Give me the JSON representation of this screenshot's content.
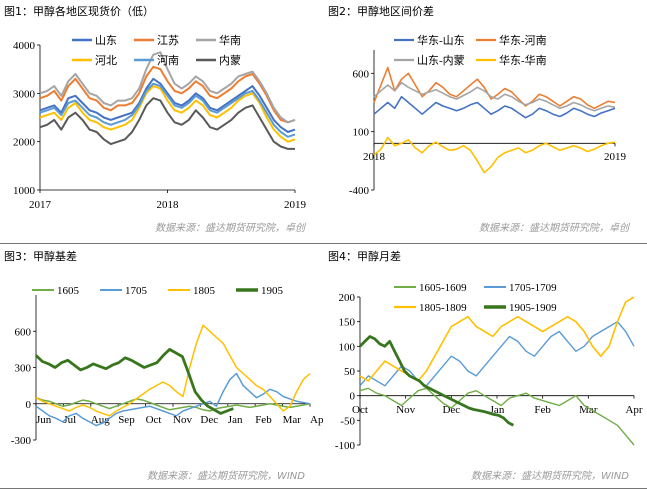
{
  "panels": [
    {
      "title": "图1：甲醇各地区现货价（低）",
      "source": "数据来源：盛达期货研究院，卓创"
    },
    {
      "title": "图2：甲醇地区间价差",
      "source": "数据来源：盛达期货研究院，卓创"
    },
    {
      "title": "图3：甲醇基差",
      "source": "数据来源：盛达期货研究院，WIND"
    },
    {
      "title": "图4：甲醇月差",
      "source": "数据来源：盛达期货研究院，WIND"
    }
  ],
  "chart_data": [
    {
      "type": "line",
      "x_ticks": [
        "2017",
        "2018",
        "2019"
      ],
      "ylim": [
        1000,
        4000
      ],
      "y_ticks": [
        1000,
        2000,
        3000,
        4000
      ],
      "grid": false,
      "legend_position": "top",
      "series": [
        {
          "name": "山东",
          "color": "#4472c4",
          "values": [
            2650,
            2700,
            2750,
            2600,
            2900,
            2950,
            2800,
            2650,
            2600,
            2500,
            2450,
            2500,
            2550,
            2600,
            2800,
            3100,
            3300,
            3200,
            3000,
            2800,
            2750,
            2850,
            3000,
            2900,
            2700,
            2650,
            2750,
            2850,
            2950,
            3050,
            3150,
            2950,
            2700,
            2450,
            2300,
            2200,
            2250
          ]
        },
        {
          "name": "江苏",
          "color": "#ed7d31",
          "values": [
            2900,
            2950,
            3050,
            2850,
            3150,
            3300,
            3100,
            2900,
            2850,
            2700,
            2650,
            2750,
            2750,
            2800,
            3000,
            3350,
            3550,
            3500,
            3250,
            3050,
            3000,
            3100,
            3250,
            3150,
            2950,
            2900,
            3000,
            3100,
            3250,
            3350,
            3400,
            3200,
            2950,
            2650,
            2450,
            2400,
            2450
          ]
        },
        {
          "name": "华南",
          "color": "#a5a5a5",
          "values": [
            3000,
            3050,
            3150,
            2950,
            3250,
            3400,
            3200,
            3000,
            2950,
            2800,
            2750,
            2850,
            2850,
            2900,
            3100,
            3500,
            3800,
            3850,
            3500,
            3200,
            3100,
            3200,
            3350,
            3250,
            3050,
            3000,
            3100,
            3200,
            3350,
            3400,
            3450,
            3250,
            3000,
            2700,
            2500,
            2400,
            2450
          ]
        },
        {
          "name": "河北",
          "color": "#ffc000",
          "values": [
            2500,
            2550,
            2600,
            2450,
            2700,
            2800,
            2600,
            2450,
            2400,
            2300,
            2250,
            2300,
            2350,
            2450,
            2700,
            3000,
            3150,
            3100,
            2850,
            2650,
            2600,
            2700,
            2850,
            2750,
            2550,
            2500,
            2600,
            2700,
            2850,
            2950,
            3000,
            2800,
            2500,
            2250,
            2100,
            2000,
            2050
          ]
        },
        {
          "name": "河南",
          "color": "#5b9bd5",
          "values": [
            2600,
            2650,
            2700,
            2550,
            2800,
            2850,
            2700,
            2550,
            2500,
            2400,
            2350,
            2400,
            2450,
            2550,
            2750,
            3050,
            3200,
            3150,
            2950,
            2750,
            2700,
            2800,
            2950,
            2850,
            2650,
            2600,
            2700,
            2800,
            2900,
            3000,
            3050,
            2850,
            2600,
            2350,
            2200,
            2100,
            2150
          ]
        },
        {
          "name": "内蒙",
          "color": "#595959",
          "values": [
            2300,
            2350,
            2450,
            2250,
            2500,
            2600,
            2450,
            2250,
            2200,
            2050,
            1950,
            2000,
            2050,
            2200,
            2450,
            2750,
            2900,
            2850,
            2600,
            2400,
            2350,
            2450,
            2650,
            2500,
            2300,
            2250,
            2350,
            2450,
            2600,
            2700,
            2750,
            2500,
            2250,
            2000,
            1900,
            1850,
            1850
          ]
        }
      ]
    },
    {
      "type": "line",
      "x_ticks": [
        "2018",
        "2019"
      ],
      "ylim": [
        -400,
        800
      ],
      "y_ticks": [
        -400,
        100,
        600
      ],
      "grid": false,
      "legend_position": "top",
      "series": [
        {
          "name": "华东-山东",
          "color": "#4472c4",
          "values": [
            250,
            300,
            350,
            300,
            400,
            350,
            300,
            250,
            300,
            350,
            320,
            300,
            280,
            300,
            330,
            350,
            300,
            250,
            280,
            320,
            300,
            260,
            220,
            250,
            300,
            280,
            250,
            230,
            260,
            300,
            280,
            250,
            230,
            260,
            280,
            300
          ]
        },
        {
          "name": "华东-河南",
          "color": "#ed7d31",
          "values": [
            350,
            500,
            650,
            450,
            550,
            600,
            500,
            400,
            450,
            520,
            480,
            420,
            400,
            450,
            500,
            550,
            480,
            380,
            420,
            470,
            440,
            380,
            320,
            360,
            420,
            400,
            360,
            320,
            360,
            400,
            380,
            330,
            300,
            330,
            360,
            350
          ]
        },
        {
          "name": "山东-内蒙",
          "color": "#a5a5a5",
          "values": [
            400,
            450,
            500,
            450,
            520,
            480,
            450,
            420,
            440,
            460,
            430,
            400,
            380,
            410,
            440,
            480,
            450,
            400,
            380,
            420,
            400,
            360,
            330,
            350,
            380,
            360,
            330,
            300,
            320,
            350,
            330,
            300,
            280,
            300,
            320,
            310
          ]
        },
        {
          "name": "华东-华南",
          "color": "#ffc000",
          "values": [
            -100,
            -50,
            50,
            -20,
            0,
            30,
            -40,
            -80,
            -20,
            10,
            -30,
            -60,
            -50,
            -20,
            -60,
            -150,
            -250,
            -200,
            -120,
            -80,
            -60,
            -40,
            -80,
            -60,
            -20,
            0,
            -30,
            -60,
            -40,
            -20,
            -40,
            -70,
            -50,
            -20,
            0,
            10
          ]
        }
      ]
    },
    {
      "type": "line",
      "x_ticks": [
        "Jun",
        "Jul",
        "Aug",
        "Sep",
        "Oct",
        "Nov",
        "Dec",
        "Jan",
        "Feb",
        "Mar",
        "Apr"
      ],
      "ylim": [
        -300,
        900
      ],
      "y_ticks": [
        -300,
        0,
        300,
        600
      ],
      "grid": false,
      "legend_position": "top",
      "series": [
        {
          "name": "1605",
          "color": "#70ad47",
          "values": [
            50,
            30,
            20,
            0,
            -20,
            -10,
            10,
            30,
            20,
            0,
            -20,
            -40,
            -20,
            0,
            20,
            40,
            30,
            10,
            -10,
            -30,
            -50,
            -40,
            -30,
            -20,
            -30,
            -50,
            -60,
            -40,
            -30,
            -20,
            -10,
            -20,
            -30,
            -20,
            -10,
            0,
            -10,
            -20,
            -30,
            -20,
            -10,
            0
          ]
        },
        {
          "name": "1705",
          "color": "#5b9bd5",
          "values": [
            -20,
            -60,
            -100,
            -120,
            -150,
            -100,
            -80,
            -120,
            -150,
            -180,
            -160,
            -120,
            -80,
            -60,
            -50,
            -40,
            -30,
            -20,
            -40,
            -60,
            -80,
            -100,
            -60,
            -40,
            -20,
            0,
            20,
            -20,
            100,
            200,
            250,
            150,
            100,
            50,
            80,
            120,
            100,
            60,
            40,
            20,
            10,
            0
          ]
        },
        {
          "name": "1805",
          "color": "#ffc000",
          "values": [
            50,
            20,
            0,
            -20,
            -40,
            -60,
            -30,
            -10,
            -30,
            -60,
            -80,
            -100,
            -60,
            -30,
            0,
            40,
            80,
            120,
            150,
            180,
            150,
            100,
            60,
            300,
            500,
            650,
            600,
            550,
            500,
            400,
            300,
            250,
            200,
            150,
            120,
            60,
            0,
            -60,
            -20,
            100,
            200,
            250
          ]
        },
        {
          "name": "1905",
          "color": "#38761d",
          "values": [
            400,
            350,
            330,
            300,
            340,
            360,
            320,
            280,
            300,
            330,
            310,
            290,
            320,
            340,
            380,
            360,
            330,
            300,
            320,
            340,
            400,
            450,
            420,
            390,
            250,
            100,
            30,
            -20,
            -50,
            -80,
            -60,
            -40
          ]
        }
      ]
    },
    {
      "type": "line",
      "x_ticks": [
        "Oct",
        "Nov",
        "Dec",
        "Jan",
        "Feb",
        "Mar",
        "Apr"
      ],
      "ylim": [
        -100,
        200
      ],
      "y_ticks": [
        -100,
        -50,
        0,
        50,
        100,
        150,
        200
      ],
      "grid": false,
      "legend_position": "top",
      "series": [
        {
          "name": "1605-1609",
          "color": "#70ad47",
          "values": [
            10,
            15,
            5,
            0,
            -10,
            -20,
            -5,
            10,
            15,
            0,
            -15,
            -25,
            -10,
            5,
            10,
            0,
            -10,
            -20,
            -5,
            0,
            5,
            -5,
            -10,
            -15,
            -20,
            -10,
            0,
            -20,
            -30,
            -40,
            -50,
            -60,
            -80,
            -100
          ]
        },
        {
          "name": "1705-1709",
          "color": "#5b9bd5",
          "values": [
            20,
            40,
            30,
            20,
            40,
            60,
            50,
            30,
            20,
            40,
            60,
            80,
            70,
            50,
            40,
            60,
            80,
            100,
            120,
            110,
            90,
            80,
            100,
            120,
            130,
            110,
            90,
            100,
            120,
            130,
            140,
            150,
            130,
            100
          ]
        },
        {
          "name": "1805-1809",
          "color": "#ffc000",
          "values": [
            40,
            30,
            50,
            70,
            60,
            50,
            40,
            30,
            50,
            80,
            110,
            140,
            150,
            160,
            140,
            130,
            120,
            140,
            150,
            160,
            150,
            140,
            130,
            140,
            150,
            160,
            150,
            130,
            100,
            80,
            100,
            150,
            190,
            200
          ]
        },
        {
          "name": "1905-1909",
          "color": "#38761d",
          "values": [
            100,
            110,
            120,
            115,
            105,
            100,
            110,
            90,
            70,
            50,
            40,
            35,
            30,
            20,
            15,
            10,
            5,
            0,
            -5,
            -10,
            -15,
            -20,
            -25,
            -28,
            -30,
            -32,
            -35,
            -38,
            -40,
            -45,
            -55,
            -60
          ]
        }
      ]
    }
  ]
}
